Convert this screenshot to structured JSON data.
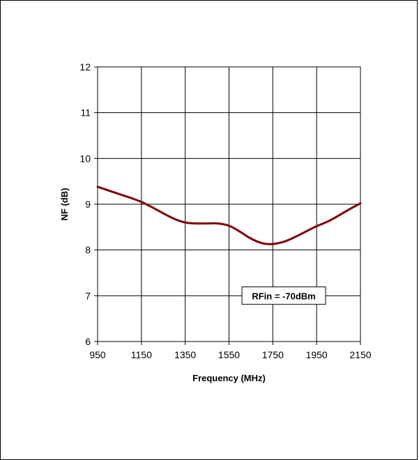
{
  "chart_data": {
    "type": "line",
    "xlabel": "Frequency (MHz)",
    "ylabel": "NF (dB)",
    "xlim": [
      950,
      2150
    ],
    "ylim": [
      6,
      12
    ],
    "xticks": [
      950,
      1150,
      1350,
      1550,
      1750,
      1950,
      2150
    ],
    "yticks": [
      6,
      7,
      8,
      9,
      10,
      11,
      12
    ],
    "grid": true,
    "annotation": "RFin = -70dBm",
    "series": [
      {
        "color": "#800000",
        "x": [
          950,
          1000,
          1050,
          1100,
          1150,
          1200,
          1250,
          1300,
          1350,
          1400,
          1450,
          1500,
          1550,
          1600,
          1650,
          1700,
          1750,
          1800,
          1850,
          1900,
          1950,
          2000,
          2050,
          2100,
          2150
        ],
        "y": [
          9.38,
          9.3,
          9.22,
          9.14,
          9.05,
          8.93,
          8.8,
          8.68,
          8.6,
          8.58,
          8.58,
          8.58,
          8.53,
          8.4,
          8.25,
          8.15,
          8.13,
          8.18,
          8.28,
          8.4,
          8.52,
          8.62,
          8.75,
          8.89,
          9.02
        ]
      }
    ]
  }
}
